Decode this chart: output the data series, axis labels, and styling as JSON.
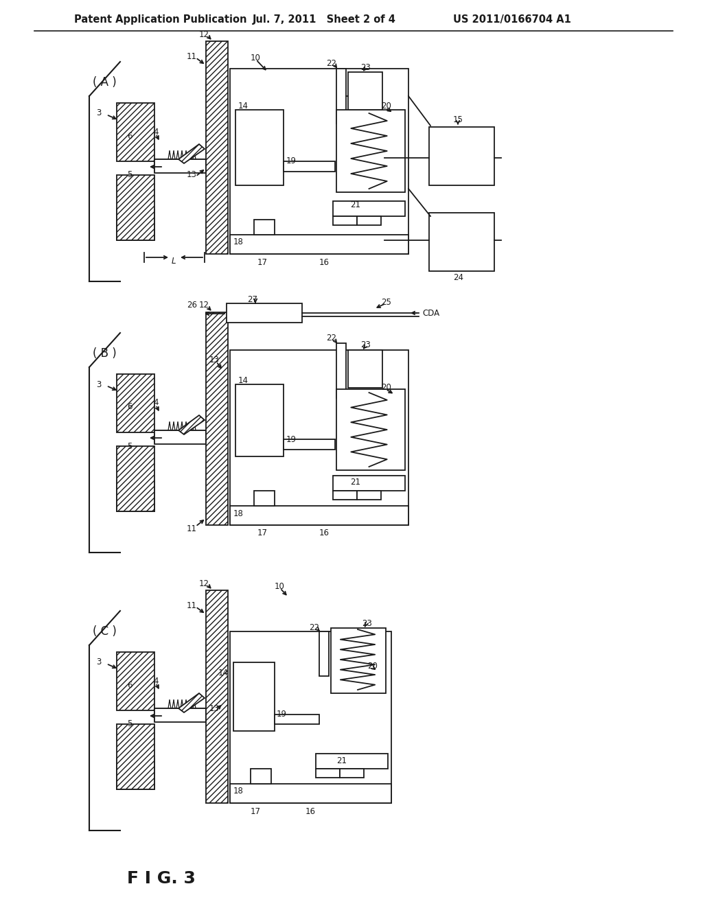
{
  "background_color": "#ffffff",
  "header_left": "Patent Application Publication",
  "header_mid": "Jul. 7, 2011   Sheet 2 of 4",
  "header_right": "US 2011/0166704 A1",
  "fig_label": "F I G. 3",
  "line_color": "#1a1a1a",
  "text_color": "#1a1a1a",
  "panel_A_oy": 870,
  "panel_B_oy": 475,
  "panel_C_oy": 70
}
